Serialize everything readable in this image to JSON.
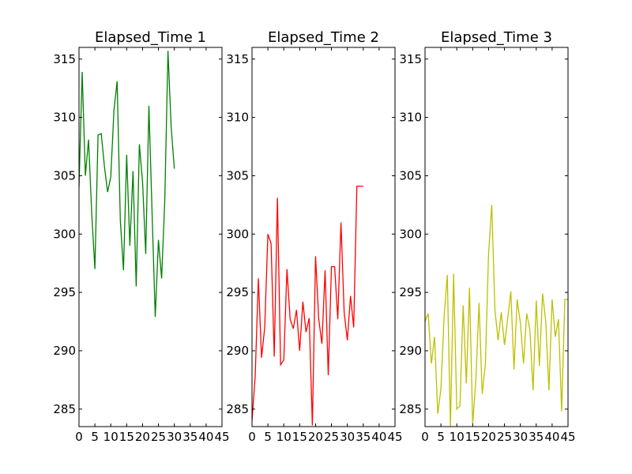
{
  "chart_data": [
    {
      "type": "line",
      "title": "Elapsed_Time 1",
      "xlabel": "",
      "ylabel": "",
      "color": "#008000",
      "xlim": [
        0,
        45
      ],
      "ylim": [
        283.5,
        316
      ],
      "xticks": [
        0,
        5,
        10,
        15,
        20,
        25,
        30,
        35,
        40,
        45
      ],
      "xtick_labels": [
        "0",
        "5",
        "10",
        "15",
        "20",
        "25",
        "30",
        "35",
        "40",
        "45"
      ],
      "yticks": [
        285,
        290,
        295,
        300,
        305,
        310,
        315
      ],
      "ytick_labels": [
        "285",
        "290",
        "295",
        "300",
        "305",
        "310",
        "315"
      ],
      "series": [
        {
          "x": [
            0,
            1,
            2,
            3,
            4,
            5,
            6,
            7,
            8,
            9,
            10,
            11,
            12,
            13,
            14,
            15,
            16,
            17,
            18,
            19,
            20,
            21,
            22,
            23,
            24,
            25,
            26,
            27,
            28,
            29,
            30
          ],
          "y": [
            304.0,
            313.9,
            305.0,
            308.1,
            301.8,
            297.0,
            308.5,
            308.6,
            305.8,
            303.6,
            304.9,
            310.6,
            313.1,
            301.2,
            296.9,
            306.8,
            299.0,
            305.4,
            295.5,
            307.7,
            304.5,
            298.3,
            311.0,
            301.8,
            292.9,
            299.5,
            296.2,
            302.9,
            315.7,
            309.2,
            305.6
          ]
        }
      ]
    },
    {
      "type": "line",
      "title": "Elapsed_Time 2",
      "xlabel": "",
      "ylabel": "",
      "color": "#ff0000",
      "xlim": [
        0,
        45
      ],
      "ylim": [
        283.5,
        316
      ],
      "xticks": [
        0,
        5,
        10,
        15,
        20,
        25,
        30,
        35,
        40,
        45
      ],
      "xtick_labels": [
        "0",
        "5",
        "10",
        "15",
        "20",
        "25",
        "30",
        "35",
        "40",
        "45"
      ],
      "yticks": [
        285,
        290,
        295,
        300,
        305,
        310,
        315
      ],
      "ytick_labels": [
        "285",
        "290",
        "295",
        "300",
        "305",
        "310",
        "315"
      ],
      "series": [
        {
          "x": [
            0,
            1,
            2,
            3,
            4,
            5,
            6,
            7,
            8,
            9,
            10,
            11,
            12,
            13,
            14,
            15,
            16,
            17,
            18,
            19,
            20,
            21,
            22,
            23,
            24,
            25,
            26,
            27,
            28,
            29,
            30,
            31,
            32,
            33,
            34,
            35
          ],
          "y": [
            284.0,
            287.8,
            296.2,
            289.4,
            292.0,
            300.0,
            299.2,
            289.5,
            303.1,
            288.8,
            289.2,
            297.0,
            292.7,
            291.9,
            293.5,
            290.0,
            294.2,
            291.6,
            292.8,
            283.6,
            298.1,
            292.7,
            290.6,
            296.9,
            287.9,
            297.2,
            297.2,
            292.7,
            301.0,
            293.3,
            290.9,
            294.7,
            292.0,
            304.1,
            304.1,
            304.1
          ]
        }
      ]
    },
    {
      "type": "line",
      "title": "Elapsed_Time 3",
      "xlabel": "",
      "ylabel": "",
      "color": "#bfbf00",
      "xlim": [
        0,
        45
      ],
      "ylim": [
        283.5,
        316
      ],
      "xticks": [
        0,
        5,
        10,
        15,
        20,
        25,
        30,
        35,
        40,
        45
      ],
      "xtick_labels": [
        "0",
        "5",
        "10",
        "15",
        "20",
        "25",
        "30",
        "35",
        "40",
        "45"
      ],
      "yticks": [
        285,
        290,
        295,
        300,
        305,
        310,
        315
      ],
      "ytick_labels": [
        "285",
        "290",
        "295",
        "300",
        "305",
        "310",
        "315"
      ],
      "series": [
        {
          "x": [
            0,
            1,
            2,
            3,
            4,
            5,
            6,
            7,
            8,
            9,
            10,
            11,
            12,
            13,
            14,
            15,
            16,
            17,
            18,
            19,
            20,
            21,
            22,
            23,
            24,
            25,
            26,
            27,
            28,
            29,
            30,
            31,
            32,
            33,
            34,
            35,
            36,
            37,
            38,
            39,
            40,
            41,
            42,
            43,
            44,
            45
          ],
          "y": [
            292.5,
            293.2,
            288.9,
            291.2,
            284.6,
            286.7,
            292.9,
            296.5,
            283.5,
            296.6,
            285.0,
            285.3,
            293.9,
            287.2,
            295.4,
            283.7,
            287.5,
            294.1,
            286.3,
            288.9,
            298.3,
            302.5,
            293.5,
            290.9,
            293.3,
            290.5,
            292.7,
            295.1,
            288.4,
            294.4,
            292.4,
            288.9,
            293.2,
            291.8,
            286.6,
            294.3,
            288.7,
            294.9,
            292.5,
            286.6,
            294.4,
            291.2,
            292.7,
            284.8,
            294.4,
            294.4
          ]
        }
      ]
    }
  ]
}
